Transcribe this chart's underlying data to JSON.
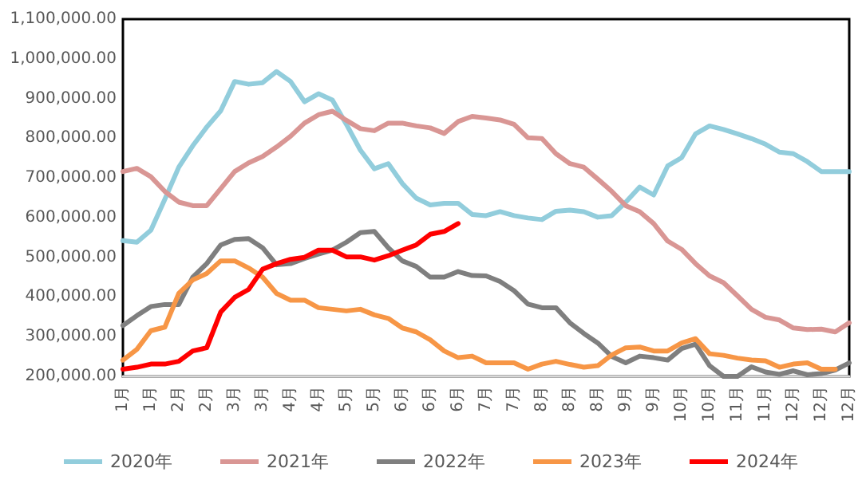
{
  "chart_data": {
    "type": "line",
    "categories": [
      "1月",
      null,
      "1月",
      null,
      "2月",
      null,
      "2月",
      null,
      "3月",
      null,
      "3月",
      null,
      "4月",
      null,
      "4月",
      null,
      "5月",
      null,
      "5月",
      null,
      "6月",
      null,
      "6月",
      null,
      "6月",
      null,
      "7月",
      null,
      "7月",
      null,
      "8月",
      null,
      "8月",
      null,
      "8月",
      null,
      "9月",
      null,
      "9月",
      null,
      "10月",
      null,
      "10月",
      null,
      "11月",
      null,
      "11月",
      null,
      "12月",
      null,
      "12月",
      null,
      "12月"
    ],
    "series": [
      {
        "name": "2020年",
        "color": "#92cddc",
        "values": [
          542000,
          538000,
          568000,
          646000,
          727000,
          781000,
          828000,
          869000,
          943000,
          936000,
          940000,
          968000,
          943000,
          892000,
          912000,
          896000,
          835000,
          770000,
          723000,
          736000,
          686000,
          649000,
          632000,
          636000,
          636000,
          608000,
          605000,
          615000,
          605000,
          599000,
          595000,
          616000,
          619000,
          615000,
          601000,
          605000,
          639000,
          677000,
          657000,
          730000,
          751000,
          811000,
          831000,
          822000,
          811000,
          799000,
          785000,
          765000,
          761000,
          741000,
          716000,
          716000,
          716000
        ]
      },
      {
        "name": "2021年",
        "color": "#d99694",
        "values": [
          716000,
          724000,
          703000,
          666000,
          639000,
          630000,
          630000,
          673000,
          716000,
          738000,
          754000,
          778000,
          805000,
          838000,
          859000,
          868000,
          845000,
          824000,
          819000,
          838000,
          838000,
          831000,
          826000,
          812000,
          842000,
          855000,
          851000,
          846000,
          835000,
          801000,
          799000,
          761000,
          736000,
          727000,
          697000,
          666000,
          630000,
          615000,
          585000,
          541000,
          520000,
          484000,
          453000,
          436000,
          403000,
          369000,
          349000,
          342000,
          322000,
          318000,
          319000,
          312000,
          335000
        ]
      },
      {
        "name": "2022年",
        "color": "#7f7f7f",
        "values": [
          328000,
          353000,
          376000,
          381000,
          381000,
          450000,
          484000,
          531000,
          545000,
          547000,
          524000,
          481000,
          484000,
          497000,
          508000,
          518000,
          538000,
          562000,
          565000,
          524000,
          491000,
          477000,
          450000,
          450000,
          464000,
          454000,
          453000,
          439000,
          416000,
          382000,
          373000,
          373000,
          335000,
          308000,
          284000,
          250000,
          234000,
          251000,
          247000,
          241000,
          270000,
          281000,
          227000,
          200000,
          200000,
          224000,
          211000,
          205000,
          214000,
          204000,
          207000,
          216000,
          234000
        ]
      },
      {
        "name": "2023年",
        "color": "#f79646",
        "values": [
          241000,
          268000,
          315000,
          324000,
          409000,
          443000,
          459000,
          491000,
          491000,
          473000,
          450000,
          409000,
          392000,
          392000,
          373000,
          369000,
          365000,
          369000,
          355000,
          346000,
          322000,
          312000,
          292000,
          264000,
          247000,
          251000,
          234000,
          234000,
          234000,
          218000,
          231000,
          238000,
          230000,
          223000,
          227000,
          254000,
          272000,
          274000,
          264000,
          264000,
          284000,
          295000,
          257000,
          253000,
          246000,
          241000,
          239000,
          223000,
          231000,
          234000,
          218000,
          218000,
          null
        ]
      },
      {
        "name": "2024年",
        "color": "#ff0000",
        "values": [
          218000,
          223000,
          231000,
          231000,
          238000,
          264000,
          272000,
          362000,
          399000,
          419000,
          470000,
          484000,
          495000,
          500000,
          518000,
          518000,
          501000,
          501000,
          493000,
          504000,
          518000,
          531000,
          558000,
          565000,
          585000,
          null,
          null,
          null,
          null,
          null,
          null,
          null,
          null,
          null,
          null,
          null,
          null,
          null,
          null,
          null,
          null,
          null,
          null,
          null,
          null,
          null,
          null,
          null,
          null,
          null,
          null,
          null,
          null
        ]
      }
    ],
    "ylim": [
      200000,
      1100000
    ],
    "yticks": [
      {
        "value": 200000,
        "label": "200,000.00"
      },
      {
        "value": 300000,
        "label": "300,000.00"
      },
      {
        "value": 400000,
        "label": "400,000.00"
      },
      {
        "value": 500000,
        "label": "500,000.00"
      },
      {
        "value": 600000,
        "label": "600,000.00"
      },
      {
        "value": 700000,
        "label": "700,000.00"
      },
      {
        "value": 800000,
        "label": "800,000.00"
      },
      {
        "value": 900000,
        "label": "900,000.00"
      },
      {
        "value": 1000000,
        "label": "1,000,000.00"
      },
      {
        "value": 1100000,
        "label": "1,100,000.00"
      }
    ],
    "grid": false,
    "legend": "bottom",
    "marker": "none",
    "line_style": "solid"
  }
}
